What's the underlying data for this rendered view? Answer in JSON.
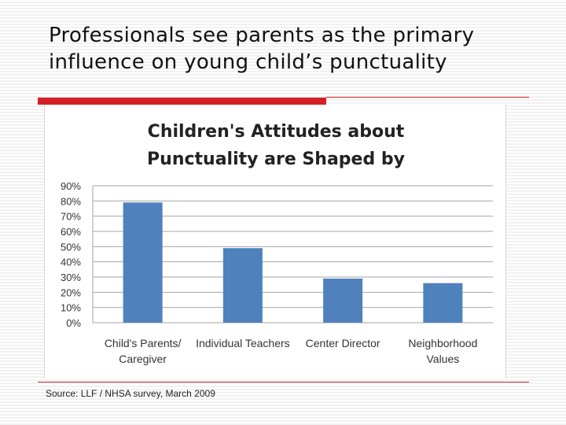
{
  "slide": {
    "title_line1": "Professionals see parents as the primary",
    "title_line2": "influence on young child’s punctuality",
    "source": "Source: LLF / NHSA survey, March 2009"
  },
  "colors": {
    "accent": "#d21f26",
    "bar": "#4f81bd",
    "grid": "#a6a6a6"
  },
  "chart_data": {
    "type": "bar",
    "title_lines": [
      "Children's Attitudes about",
      "Punctuality  are Shaped by"
    ],
    "categories": [
      [
        "Child's Parents/",
        "Caregiver"
      ],
      [
        "Individual Teachers"
      ],
      [
        "Center Director"
      ],
      [
        "Neighborhood",
        "Values"
      ]
    ],
    "values": [
      0.79,
      0.49,
      0.29,
      0.26
    ],
    "yticks": [
      "0%",
      "10%",
      "20%",
      "30%",
      "40%",
      "50%",
      "60%",
      "70%",
      "80%",
      "90%"
    ],
    "ylim": [
      0,
      0.9
    ],
    "xlabel": "",
    "ylabel": "",
    "grid": true,
    "legend": "none"
  }
}
